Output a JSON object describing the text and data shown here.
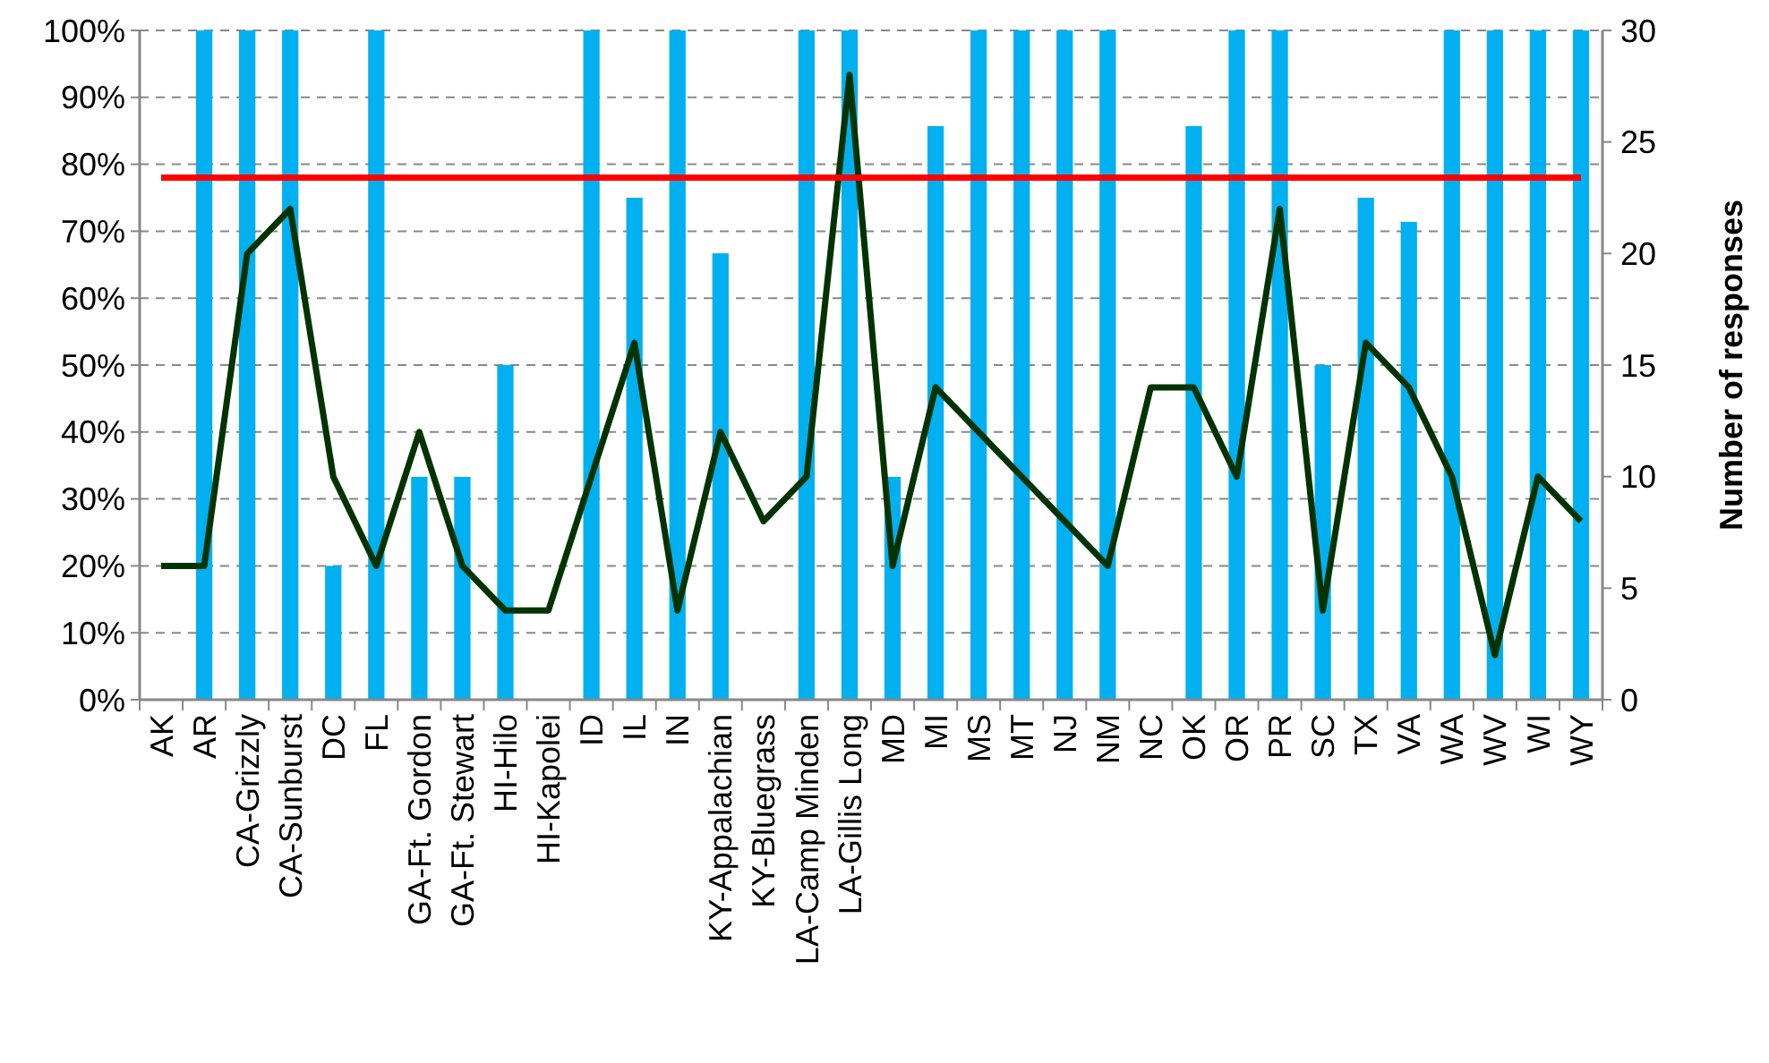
{
  "chart_data": {
    "type": "bar",
    "categories": [
      "AK",
      "AR",
      "CA-Grizzly",
      "CA-Sunburst",
      "DC",
      "FL",
      "GA-Ft. Gordon",
      "GA-Ft. Stewart",
      "HI-Hilo",
      "HI-Kapolei",
      "ID",
      "IL",
      "IN",
      "KY-Appalachian",
      "KY-Bluegrass",
      "LA-Camp Minden",
      "LA-Gillis Long",
      "MD",
      "MI",
      "MS",
      "MT",
      "NJ",
      "NM",
      "NC",
      "OK",
      "OR",
      "PR",
      "SC",
      "TX",
      "VA",
      "WA",
      "WV",
      "WI",
      "WY"
    ],
    "series": [
      {
        "color": "#00b0f0",
        "values": [
          0,
          100,
          100,
          100,
          20,
          100,
          33.3,
          33.3,
          50,
          0,
          100,
          75,
          100,
          66.7,
          0,
          100,
          100,
          33.3,
          85.7,
          100,
          100,
          100,
          100,
          0,
          85.7,
          100,
          100,
          50,
          75,
          71.4,
          100,
          100,
          100,
          100
        ]
      },
      {
        "type": "line",
        "axis": "y2",
        "color": "#003300",
        "values": [
          6,
          6,
          20,
          22,
          10,
          6,
          12,
          6,
          4,
          4,
          10,
          16,
          4,
          12,
          8,
          10,
          28,
          6,
          14,
          12,
          10,
          8,
          6,
          14,
          14,
          10,
          22,
          4,
          16,
          14,
          10,
          2,
          10,
          8
        ]
      }
    ],
    "ylim": [
      0,
      100
    ],
    "yticks": [
      {
        "value": 0,
        "label": "0%"
      },
      {
        "value": 10,
        "label": "10%"
      },
      {
        "value": 20,
        "label": "20%"
      },
      {
        "value": 30,
        "label": "30%"
      },
      {
        "value": 40,
        "label": "40%"
      },
      {
        "value": 50,
        "label": "50%"
      },
      {
        "value": 60,
        "label": "60%"
      },
      {
        "value": 70,
        "label": "70%"
      },
      {
        "value": 80,
        "label": "80%"
      },
      {
        "value": 90,
        "label": "90%"
      },
      {
        "value": 100,
        "label": "100%"
      }
    ],
    "y2lim": [
      0,
      30
    ],
    "y2ticks": [
      0,
      5,
      10,
      15,
      20,
      25,
      30
    ],
    "y2label": "Number of responses",
    "ref_lines": [
      {
        "axis": "y",
        "value": 78,
        "color": "#ff0000"
      }
    ],
    "grid": "y",
    "marker": "none",
    "line_style": "solid"
  }
}
